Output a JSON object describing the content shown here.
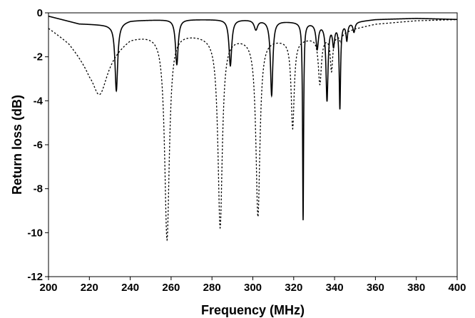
{
  "chart_data": {
    "type": "line",
    "title": "",
    "xlabel": "Frequency (MHz)",
    "ylabel": "Return loss (dB)",
    "xlim": [
      200,
      400
    ],
    "ylim": [
      -12,
      0
    ],
    "xticks": [
      200,
      220,
      240,
      260,
      280,
      300,
      320,
      340,
      360,
      380,
      400
    ],
    "yticks": [
      0,
      -2,
      -4,
      -6,
      -8,
      -10,
      -12
    ],
    "grid": false,
    "legend": "none",
    "series": [
      {
        "style": "solid",
        "color": "#000000",
        "baseline": [
          [
            200,
            -0.15
          ],
          [
            215,
            -0.5
          ],
          [
            230,
            -0.55
          ],
          [
            240,
            -0.35
          ],
          [
            260,
            -0.3
          ],
          [
            280,
            -0.3
          ],
          [
            300,
            -0.3
          ],
          [
            320,
            -0.4
          ],
          [
            340,
            -0.5
          ],
          [
            360,
            -0.3
          ],
          [
            380,
            -0.25
          ],
          [
            400,
            -0.3
          ]
        ],
        "dips": [
          {
            "x": 233.2,
            "y": -3.55,
            "w": 0.8
          },
          {
            "x": 262.8,
            "y": -2.35,
            "w": 0.8
          },
          {
            "x": 289.0,
            "y": -2.4,
            "w": 0.8
          },
          {
            "x": 301.5,
            "y": -0.75,
            "w": 1.0
          },
          {
            "x": 309.2,
            "y": -3.75,
            "w": 0.7
          },
          {
            "x": 324.6,
            "y": -9.4,
            "w": 0.3
          },
          {
            "x": 331.5,
            "y": -1.6,
            "w": 0.7
          },
          {
            "x": 336.3,
            "y": -3.95,
            "w": 0.6
          },
          {
            "x": 339.5,
            "y": -1.4,
            "w": 0.6
          },
          {
            "x": 342.6,
            "y": -4.3,
            "w": 0.4
          },
          {
            "x": 346.0,
            "y": -1.2,
            "w": 0.5
          },
          {
            "x": 349.5,
            "y": -0.85,
            "w": 0.6
          }
        ]
      },
      {
        "style": "dotted",
        "color": "#000000",
        "baseline": [
          [
            200,
            -0.6
          ],
          [
            210,
            -1.2
          ],
          [
            220,
            -2.2
          ],
          [
            240,
            -1.0
          ],
          [
            260,
            -0.8
          ],
          [
            280,
            -1.0
          ],
          [
            300,
            -1.1
          ],
          [
            320,
            -1.2
          ],
          [
            340,
            -1.0
          ],
          [
            350,
            -0.7
          ],
          [
            360,
            -0.5
          ],
          [
            380,
            -0.35
          ],
          [
            400,
            -0.3
          ]
        ],
        "dips": [
          {
            "x": 224.8,
            "y": -3.7,
            "w": 4.5
          },
          {
            "x": 258.0,
            "y": -10.25,
            "w": 1.4
          },
          {
            "x": 284.0,
            "y": -9.7,
            "w": 1.3
          },
          {
            "x": 302.5,
            "y": -9.2,
            "w": 1.2
          },
          {
            "x": 319.5,
            "y": -5.2,
            "w": 0.9
          },
          {
            "x": 332.8,
            "y": -3.2,
            "w": 0.9
          },
          {
            "x": 338.5,
            "y": -2.6,
            "w": 0.7
          },
          {
            "x": 343.0,
            "y": -1.3,
            "w": 0.6
          }
        ]
      }
    ]
  }
}
